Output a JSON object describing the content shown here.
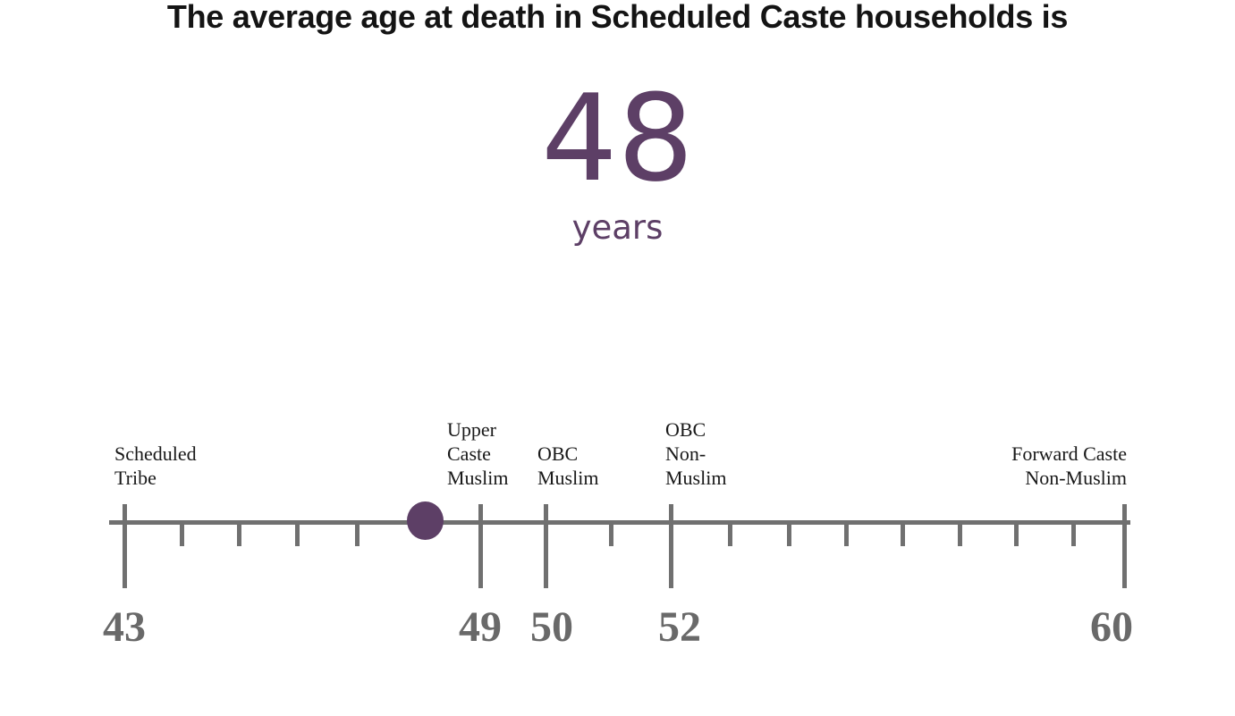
{
  "title": "The average age at death in Scheduled Caste households is",
  "highlight": {
    "value": "48",
    "unit": "years"
  },
  "colors": {
    "accent_purple": "#5d3f66",
    "axis_gray": "#707070",
    "number_gray": "#696969",
    "title_black": "#141414"
  },
  "chart_data": {
    "type": "scatter",
    "subtype": "number-line",
    "title": "The average age at death in Scheduled Caste households is",
    "unit": "years",
    "highlight_point": {
      "label": "Scheduled Caste",
      "value": 48
    },
    "axis": {
      "min": 43,
      "max": 60,
      "major_ticks": [
        43,
        49,
        50,
        52,
        60
      ],
      "minor_ticks": [
        44,
        45,
        46,
        47,
        51,
        53,
        54,
        55,
        56,
        57,
        58,
        59
      ],
      "tick_number_labels": [
        "43",
        "49",
        "50",
        "52",
        "60"
      ]
    },
    "points": [
      {
        "label": "Scheduled Tribe",
        "value": 43,
        "label_lines": [
          "Scheduled",
          "Tribe"
        ],
        "label_align": "left"
      },
      {
        "label": "Scheduled Caste",
        "value": 48,
        "highlighted": true,
        "marker": "dot"
      },
      {
        "label": "Upper Caste Muslim",
        "value": 49,
        "label_lines": [
          "Upper",
          "Caste",
          "Muslim"
        ],
        "label_align": "left"
      },
      {
        "label": "OBC Muslim",
        "value": 50,
        "label_lines": [
          "OBC",
          "Muslim"
        ],
        "label_align": "left"
      },
      {
        "label": "OBC Non-Muslim",
        "value": 52,
        "label_lines": [
          "OBC",
          "Non-",
          "Muslim"
        ],
        "label_align": "left"
      },
      {
        "label": "Forward Caste Non-Muslim",
        "value": 60,
        "label_lines": [
          "Forward Caste",
          "Non-Muslim"
        ],
        "label_align": "right"
      }
    ],
    "legend": null,
    "grid": false
  }
}
